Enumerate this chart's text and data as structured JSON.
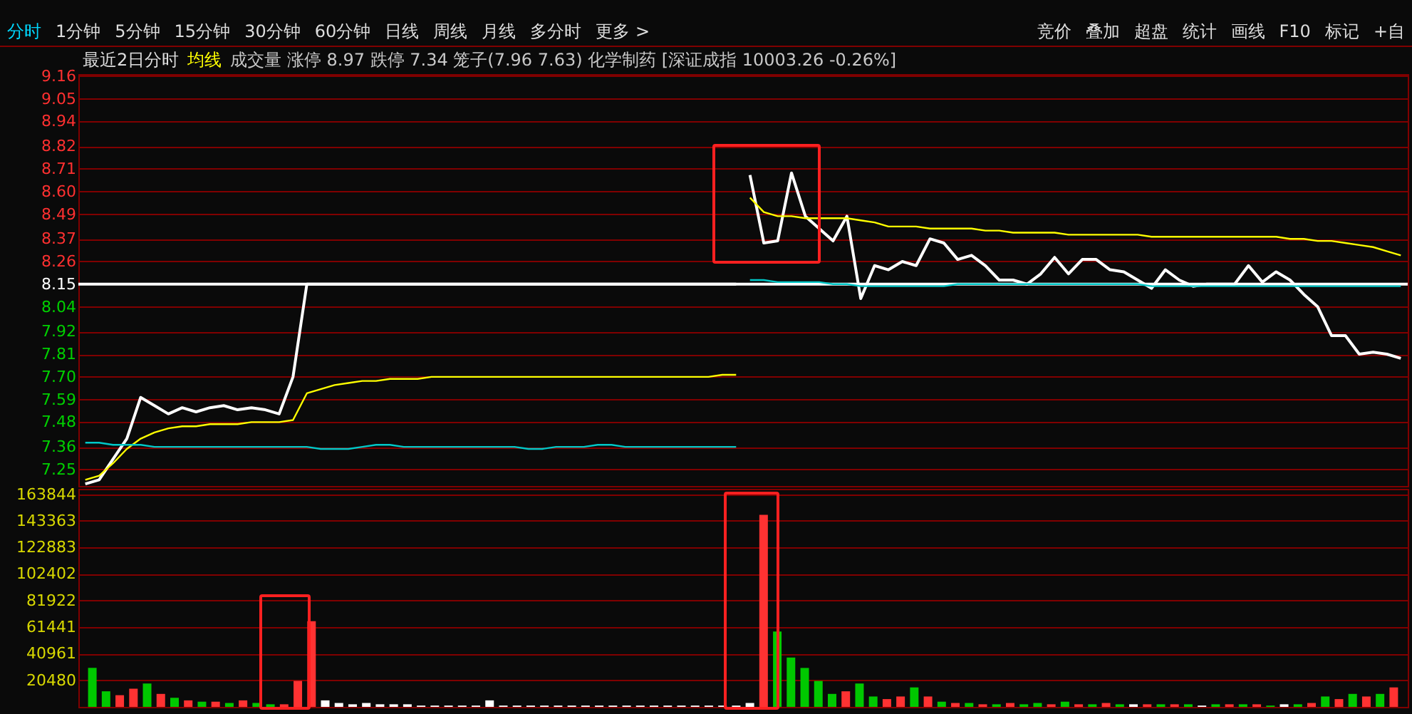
{
  "chart_data": [
    {
      "type": "line",
      "title": "最近2日分时",
      "subtitle": "成交量 涨停 8.97 跌停 7.34 笼子(7.96 7.63) 化学制药 [深证成指 10003.26 -0.26%]",
      "annotations": [
        "分时",
        "1分钟",
        "5分钟",
        "15分钟",
        "30分钟",
        "60分钟",
        "日线",
        "周线",
        "月线",
        "多分时",
        "更多 >",
        "竞价",
        "叠加",
        "超盘",
        "统计",
        "画线",
        "F10",
        "标记",
        "+自"
      ],
      "categories": [
        null,
        null,
        null,
        null,
        null,
        null,
        null,
        null,
        null,
        null,
        null,
        null,
        null,
        null,
        null,
        null,
        null,
        null,
        null,
        null,
        null,
        null,
        null,
        null,
        null,
        null,
        null,
        null,
        null,
        null,
        null,
        null,
        null,
        null,
        null,
        null,
        null,
        null,
        null,
        null,
        null,
        null,
        null,
        null,
        null,
        null,
        null,
        null,
        null,
        null,
        null,
        null,
        null,
        null,
        null,
        null,
        null,
        null,
        null,
        null,
        null,
        null,
        null,
        null,
        null,
        null,
        null,
        null,
        null,
        null,
        null,
        null,
        null,
        null,
        null,
        null,
        null,
        null,
        null,
        null,
        null,
        null,
        null,
        null,
        null,
        null,
        null,
        null,
        null,
        null,
        null,
        null,
        null,
        null,
        null,
        null
      ],
      "series": [
        {
          "color": "#ffffff",
          "values": [
            7.18,
            7.2,
            7.3,
            7.4,
            7.6,
            7.56,
            7.52,
            7.55,
            7.53,
            7.55,
            7.56,
            7.54,
            7.55,
            7.54,
            7.52,
            7.7,
            8.15,
            8.15,
            8.15,
            8.15,
            8.15,
            8.15,
            8.15,
            8.15,
            8.15,
            8.15,
            8.15,
            8.15,
            8.15,
            8.15,
            8.15,
            8.15,
            8.15,
            8.15,
            8.15,
            8.15,
            8.15,
            8.15,
            8.15,
            8.15,
            8.15,
            8.15,
            8.15,
            8.15,
            8.15,
            8.15,
            8.15,
            8.15,
            8.68,
            8.35,
            8.36,
            8.69,
            8.48,
            8.42,
            8.36,
            8.48,
            8.08,
            8.24,
            8.22,
            8.26,
            8.24,
            8.37,
            8.35,
            8.27,
            8.29,
            8.24,
            8.17,
            8.17,
            8.15,
            8.2,
            8.28,
            8.2,
            8.27,
            8.27,
            8.22,
            8.21,
            8.17,
            8.13,
            8.22,
            8.17,
            8.14,
            8.15,
            8.15,
            8.15,
            8.24,
            8.16,
            8.21,
            8.17,
            8.1,
            8.04,
            7.9,
            7.9,
            7.81,
            7.82,
            7.81,
            7.79
          ]
        },
        {
          "name": "均线",
          "color": "#ffff00",
          "values": [
            7.2,
            7.22,
            7.28,
            7.35,
            7.4,
            7.43,
            7.45,
            7.46,
            7.46,
            7.47,
            7.47,
            7.47,
            7.48,
            7.48,
            7.48,
            7.49,
            7.62,
            7.64,
            7.66,
            7.67,
            7.68,
            7.68,
            7.69,
            7.69,
            7.69,
            7.7,
            7.7,
            7.7,
            7.7,
            7.7,
            7.7,
            7.7,
            7.7,
            7.7,
            7.7,
            7.7,
            7.7,
            7.7,
            7.7,
            7.7,
            7.7,
            7.7,
            7.7,
            7.7,
            7.7,
            7.7,
            7.71,
            7.71,
            8.57,
            8.5,
            8.48,
            8.48,
            8.47,
            8.47,
            8.47,
            8.47,
            8.46,
            8.45,
            8.43,
            8.43,
            8.43,
            8.42,
            8.42,
            8.42,
            8.42,
            8.41,
            8.41,
            8.4,
            8.4,
            8.4,
            8.4,
            8.39,
            8.39,
            8.39,
            8.39,
            8.39,
            8.39,
            8.38,
            8.38,
            8.38,
            8.38,
            8.38,
            8.38,
            8.38,
            8.38,
            8.38,
            8.38,
            8.37,
            8.37,
            8.36,
            8.36,
            8.35,
            8.34,
            8.33,
            8.31,
            8.29
          ]
        },
        {
          "color": "#00c8c8",
          "values": [
            7.38,
            7.38,
            7.37,
            7.37,
            7.37,
            7.36,
            7.36,
            7.36,
            7.36,
            7.36,
            7.36,
            7.36,
            7.36,
            7.36,
            7.36,
            7.36,
            7.36,
            7.35,
            7.35,
            7.35,
            7.36,
            7.37,
            7.37,
            7.36,
            7.36,
            7.36,
            7.36,
            7.36,
            7.36,
            7.36,
            7.36,
            7.36,
            7.35,
            7.35,
            7.36,
            7.36,
            7.36,
            7.37,
            7.37,
            7.36,
            7.36,
            7.36,
            7.36,
            7.36,
            7.36,
            7.36,
            7.36,
            7.36,
            8.17,
            8.17,
            8.16,
            8.16,
            8.16,
            8.16,
            8.15,
            8.15,
            8.14,
            8.14,
            8.14,
            8.14,
            8.14,
            8.14,
            8.14,
            8.15,
            8.15,
            8.15,
            8.15,
            8.15,
            8.15,
            8.15,
            8.15,
            8.15,
            8.15,
            8.15,
            8.15,
            8.15,
            8.15,
            8.14,
            8.14,
            8.14,
            8.14,
            8.14,
            8.14,
            8.14,
            8.14,
            8.14,
            8.14,
            8.14,
            8.14,
            8.14,
            8.14,
            8.14,
            8.14,
            8.14,
            8.14,
            8.14
          ]
        }
      ],
      "ylim": [
        7.17,
        9.17
      ],
      "yticks": [
        7.25,
        7.36,
        7.48,
        7.59,
        {
          "value": 7.7,
          "label": "7.70"
        },
        7.81,
        7.92,
        8.04,
        8.15,
        8.26,
        8.37,
        8.49,
        {
          "value": 8.6,
          "label": "8.60"
        },
        8.71,
        8.82,
        8.94,
        9.05,
        9.16
      ],
      "ref_lines": [
        {
          "axis": "y",
          "value": 8.15,
          "color": "#ffffff"
        }
      ],
      "grid": "y",
      "legend": "top left",
      "tick_labels": "y"
    },
    {
      "type": "bar",
      "categories": [
        null,
        null,
        null,
        null,
        null,
        null,
        null,
        null,
        null,
        null,
        null,
        null,
        null,
        null,
        null,
        null,
        null,
        null,
        null,
        null,
        null,
        null,
        null,
        null,
        null,
        null,
        null,
        null,
        null,
        null,
        null,
        null,
        null,
        null,
        null,
        null,
        null,
        null,
        null,
        null,
        null,
        null,
        null,
        null,
        null,
        null,
        null,
        null,
        null,
        null,
        null,
        null,
        null,
        null,
        null,
        null,
        null,
        null,
        null,
        null,
        null,
        null,
        null,
        null,
        null,
        null,
        null,
        null,
        null,
        null,
        null,
        null,
        null,
        null,
        null,
        null,
        null,
        null,
        null,
        null,
        null,
        null,
        null,
        null,
        null,
        null,
        null,
        null,
        null,
        null,
        null,
        null,
        null,
        null,
        null,
        null
      ],
      "values": [
        30000,
        12000,
        9000,
        14000,
        18000,
        10000,
        7000,
        5000,
        4000,
        4000,
        3000,
        5000,
        3000,
        2000,
        2000,
        20000,
        66000,
        5000,
        3000,
        2000,
        3000,
        2000,
        2000,
        2000,
        1000,
        1000,
        1000,
        1000,
        1000,
        5000,
        1000,
        1000,
        1000,
        1000,
        1000,
        1000,
        1000,
        1000,
        1000,
        1000,
        1000,
        1000,
        1000,
        1000,
        1000,
        1000,
        1000,
        1000,
        3000,
        148000,
        58000,
        38000,
        30000,
        20000,
        10000,
        12000,
        18000,
        8000,
        6000,
        8000,
        15000,
        8000,
        4000,
        3000,
        3000,
        2000,
        2000,
        3000,
        2000,
        3000,
        2000,
        4000,
        2000,
        2000,
        3000,
        2000,
        2000,
        2000,
        2000,
        2000,
        2000,
        1000,
        2000,
        2000,
        2000,
        2000,
        1000,
        2000,
        2000,
        3000,
        8000,
        6000,
        10000,
        8000,
        10000,
        15000
      ],
      "colors": [
        "#00c800",
        "#00c800",
        "#ff3232",
        "#ff3232",
        "#00c800",
        "#ff3232",
        "#00c800",
        "#ff3232",
        "#00c800",
        "#ff3232",
        "#00c800",
        "#ff3232",
        "#00c800",
        "#00c800",
        "#ff3232",
        "#ff3232",
        "#ff3232",
        "#ffffff",
        "#ffffff",
        "#ffffff",
        "#ffffff",
        "#ffffff",
        "#ffffff",
        "#ffffff",
        "#ffffff",
        "#ffffff",
        "#ffffff",
        "#ffffff",
        "#ffffff",
        "#ffffff",
        "#ffffff",
        "#ffffff",
        "#ffffff",
        "#ffffff",
        "#ffffff",
        "#ffffff",
        "#ffffff",
        "#ffffff",
        "#ffffff",
        "#ffffff",
        "#ffffff",
        "#ffffff",
        "#ffffff",
        "#ffffff",
        "#ffffff",
        "#ffffff",
        "#ffffff",
        "#ffffff",
        "#ffffff",
        "#ff3232",
        "#00c800",
        "#00c800",
        "#00c800",
        "#00c800",
        "#00c800",
        "#ff3232",
        "#00c800",
        "#00c800",
        "#ff3232",
        "#ff3232",
        "#00c800",
        "#ff3232",
        "#00c800",
        "#ff3232",
        "#00c800",
        "#ff3232",
        "#00c800",
        "#ff3232",
        "#00c800",
        "#00c800",
        "#ff3232",
        "#00c800",
        "#ff3232",
        "#00c800",
        "#ff3232",
        "#00c800",
        "#ffffff",
        "#ff3232",
        "#00c800",
        "#ff3232",
        "#00c800",
        "#ffffff",
        "#00c800",
        "#ff3232",
        "#00c800",
        "#ff3232",
        "#00c800",
        "#ffffff",
        "#00c800",
        "#ff3232",
        "#00c800",
        "#ff3232",
        "#00c800",
        "#ff3232",
        "#00c800",
        "#ff3232"
      ],
      "ylim": [
        0,
        168000
      ],
      "yticks": [
        20480,
        40961,
        61441,
        81922,
        102402,
        122883,
        143363,
        163844
      ],
      "grid": "y",
      "tick_labels": "y"
    }
  ]
}
